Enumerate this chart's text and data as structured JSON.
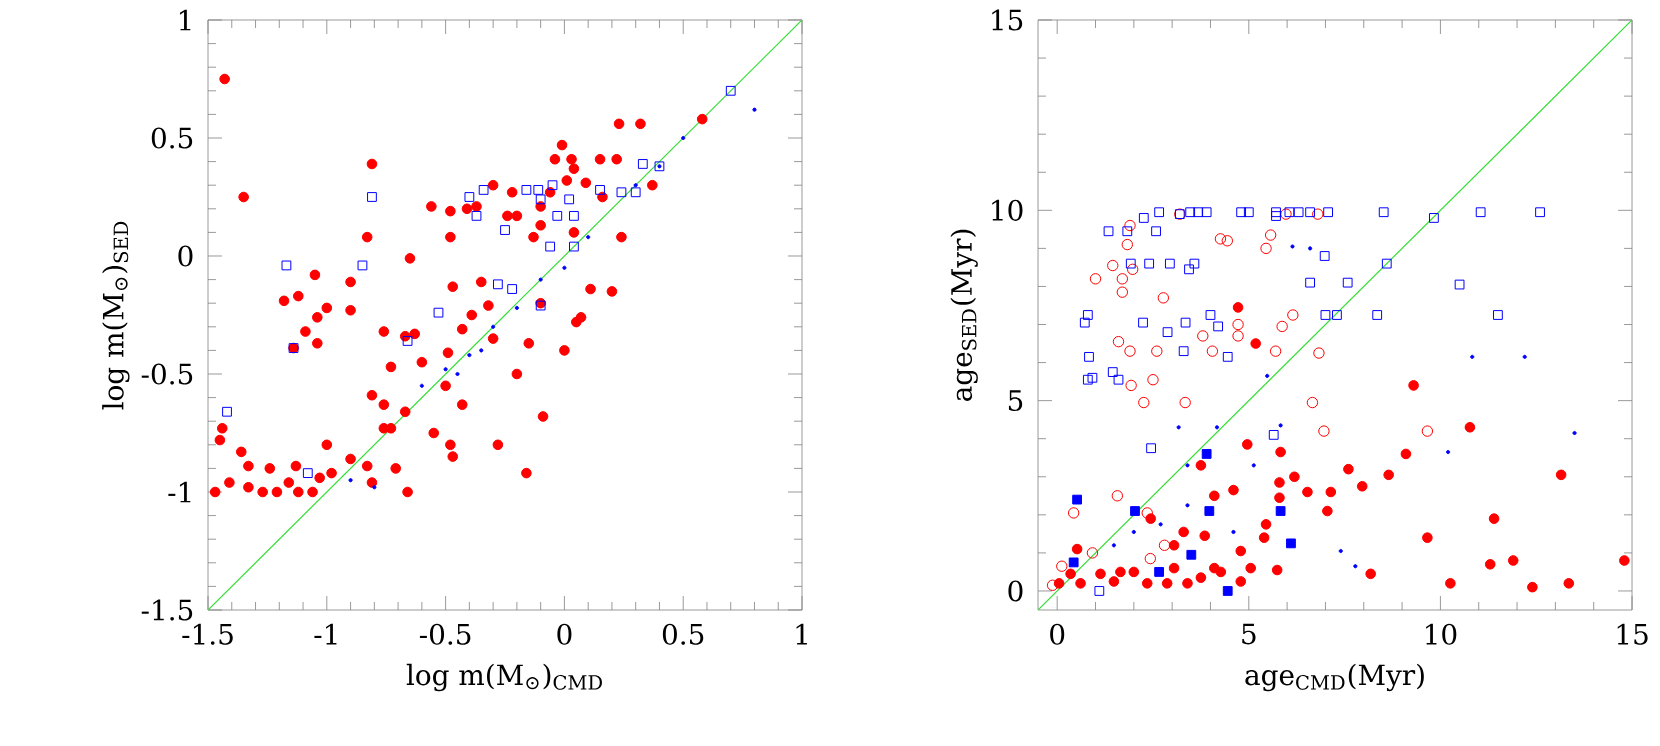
{
  "chart_data": [
    {
      "type": "scatter",
      "xlabel": "log m(M$_{⊙}$)$_{CMD}$",
      "ylabel": "log m(M$_{⊙}$)$_{SED}$",
      "xlim": [
        -1.5,
        1
      ],
      "ylim": [
        -1.5,
        1
      ],
      "xticks": [
        -1.5,
        -1,
        -0.5,
        0,
        0.5,
        1
      ],
      "yticks": [
        -1.5,
        -1,
        -0.5,
        0,
        0.5,
        1
      ],
      "series": [
        {
          "color": "#ff0000",
          "marker": "circle",
          "x": [
            -1.43,
            -1.35,
            -0.81,
            -0.83,
            -0.65,
            -1.05,
            -0.9,
            -1.18,
            -1.12,
            -1.0,
            -0.9,
            -1.04,
            -1.09,
            -1.04,
            -1.14,
            -0.76,
            -0.67,
            -0.63,
            -0.56,
            -0.48,
            -0.48,
            -0.41,
            -0.37,
            -0.3,
            -0.22,
            -0.24,
            -0.2,
            -0.13,
            -0.1,
            -0.04,
            -0.01,
            0.03,
            0.04,
            0.01,
            -0.06,
            -0.1,
            0.04,
            0.09,
            0.15,
            0.22,
            0.23,
            0.32,
            0.16,
            -0.47,
            -0.35,
            -0.32,
            -0.39,
            -0.43,
            -0.49,
            -0.15,
            -0.73,
            -0.81,
            -0.76,
            -0.73,
            -0.76,
            -0.67,
            -0.55,
            -0.48,
            -0.47,
            -0.28,
            -0.16,
            -0.43,
            -1.45,
            -1.44,
            -1.47,
            -1.41,
            -1.36,
            -1.33,
            -1.24,
            -1.21,
            -1.12,
            -1.27,
            -1.16,
            -1.06,
            -1.13,
            -1.0,
            -0.98,
            -0.9,
            -0.83,
            -0.81,
            -0.66,
            -0.71,
            -1.33,
            -1.03,
            0.24,
            0.37,
            0.58,
            -0.09,
            0.07,
            0.11,
            -0.3,
            -0.2,
            0.0,
            0.2,
            -0.5,
            -0.6,
            -0.1,
            0.05
          ],
          "values": [
            0.75,
            0.25,
            0.39,
            0.08,
            -0.01,
            -0.08,
            -0.11,
            -0.19,
            -0.17,
            -0.22,
            -0.23,
            -0.26,
            -0.32,
            -0.37,
            -0.39,
            -0.32,
            -0.34,
            -0.33,
            0.21,
            0.19,
            0.08,
            0.2,
            0.21,
            0.3,
            0.27,
            0.17,
            0.17,
            0.08,
            0.13,
            0.41,
            0.47,
            0.41,
            0.37,
            0.32,
            0.27,
            0.21,
            0.1,
            0.31,
            0.41,
            0.41,
            0.56,
            0.56,
            0.25,
            -0.13,
            -0.11,
            -0.21,
            -0.25,
            -0.31,
            -0.41,
            -0.37,
            -0.47,
            -0.59,
            -0.63,
            -0.73,
            -0.73,
            -0.66,
            -0.75,
            -0.8,
            -0.85,
            -0.8,
            -0.92,
            -0.63,
            -0.78,
            -0.73,
            -1.0,
            -0.96,
            -0.83,
            -0.89,
            -0.9,
            -1.0,
            -1.0,
            -1.0,
            -0.96,
            -1.0,
            -0.89,
            -0.8,
            -0.92,
            -0.86,
            -0.89,
            -0.96,
            -1.0,
            -0.9,
            -0.98,
            -0.94,
            0.08,
            0.3,
            0.58,
            -0.68,
            -0.26,
            -0.14,
            -0.35,
            -0.5,
            -0.4,
            -0.15,
            -0.55,
            -0.45,
            -0.2,
            -0.28
          ]
        },
        {
          "color": "#0000ff",
          "marker": "square",
          "x": [
            -0.81,
            -1.17,
            -0.85,
            -1.14,
            -1.42,
            -1.08,
            -0.4,
            -0.34,
            -0.37,
            -0.25,
            -0.16,
            -0.11,
            -0.05,
            -0.1,
            0.02,
            0.04,
            -0.03,
            0.15,
            0.24,
            0.3,
            0.33,
            0.4,
            0.7,
            -0.53,
            -0.28,
            -0.66,
            -0.06,
            0.04,
            -0.22,
            -0.1
          ],
          "values": [
            0.25,
            -0.04,
            -0.04,
            -0.39,
            -0.66,
            -0.92,
            0.25,
            0.28,
            0.17,
            0.11,
            0.28,
            0.28,
            0.3,
            0.24,
            0.24,
            0.17,
            0.17,
            0.28,
            0.27,
            0.27,
            0.39,
            0.38,
            0.7,
            -0.24,
            -0.12,
            -0.36,
            0.04,
            0.04,
            -0.14,
            -0.21
          ]
        },
        {
          "color": "#0000ff",
          "marker": "circle",
          "x": [
            -0.9,
            -0.8,
            -0.6,
            -0.5,
            -0.4,
            -0.3,
            -0.2,
            -0.1,
            0.0,
            0.1,
            0.3,
            0.5,
            0.8,
            0.4,
            -0.45,
            -0.35
          ],
          "values": [
            -0.95,
            -0.98,
            -0.55,
            -0.48,
            -0.42,
            -0.3,
            -0.22,
            -0.1,
            -0.05,
            0.08,
            0.3,
            0.5,
            0.62,
            0.38,
            -0.5,
            -0.4
          ]
        },
        {
          "type": "line",
          "color": "#33dd33",
          "marker": "none",
          "x": [
            -1.5,
            1
          ],
          "values": [
            -1.5,
            1
          ]
        }
      ]
    },
    {
      "type": "scatter",
      "xlabel": "age$_{CMD}$(Myr)",
      "ylabel": "age$_{SED}$(Myr)",
      "xlim": [
        -0.5,
        15
      ],
      "ylim": [
        -0.5,
        15
      ],
      "xticks": [
        0,
        5,
        10,
        15
      ],
      "yticks": [
        0,
        5,
        10,
        15
      ],
      "series": [
        {
          "color": "#ff0000",
          "marker": "circle",
          "x": [
            1.0,
            1.45,
            1.7,
            1.7,
            1.83,
            1.9,
            1.97,
            2.77,
            1.6,
            1.9,
            2.6,
            2.5,
            2.26,
            3.34,
            1.93,
            3.2,
            3.8,
            4.05,
            4.26,
            4.44,
            4.72,
            4.72,
            5.45,
            5.57,
            5.87,
            6.15,
            5.97,
            6.8,
            6.83,
            5.7,
            6.66,
            6.96,
            9.66,
            0.43,
            1.57,
            0.12,
            0.92,
            -0.12,
            2.8,
            2.43,
            2.35
          ],
          "values": [
            8.2,
            8.55,
            8.2,
            7.85,
            9.1,
            9.6,
            8.45,
            7.7,
            6.55,
            6.3,
            6.3,
            5.55,
            4.95,
            4.95,
            5.4,
            9.9,
            6.7,
            6.3,
            9.25,
            9.2,
            6.7,
            7.0,
            9.0,
            9.35,
            6.95,
            7.25,
            9.9,
            9.9,
            6.25,
            6.3,
            4.95,
            4.2,
            4.2,
            2.05,
            2.5,
            0.65,
            1.0,
            0.15,
            1.2,
            0.85,
            2.05
          ]
        },
        {
          "color": "#0000ff",
          "marker": "square",
          "x": [
            1.34,
            1.83,
            2.26,
            2.58,
            2.66,
            3.2,
            3.47,
            3.68,
            3.9,
            4.8,
            5.0,
            5.71,
            5.71,
            6.06,
            6.3,
            6.6,
            7.07,
            8.52,
            9.83,
            11.05,
            12.6,
            1.92,
            2.4,
            2.94,
            3.44,
            3.58,
            6.6,
            7.58,
            10.5,
            8.6,
            0.72,
            0.8,
            0.83,
            0.92,
            0.8,
            1.45,
            1.6,
            2.24,
            2.88,
            3.35,
            3.3,
            4.0,
            4.2,
            4.45,
            7.0,
            7.3,
            8.35,
            11.5,
            2.45,
            5.65,
            1.1,
            6.98
          ],
          "values": [
            9.45,
            9.45,
            9.8,
            9.45,
            9.95,
            9.9,
            9.95,
            9.95,
            9.95,
            9.95,
            9.95,
            9.95,
            9.85,
            9.95,
            9.95,
            9.95,
            9.95,
            9.95,
            9.8,
            9.95,
            9.95,
            8.6,
            8.6,
            8.6,
            8.45,
            8.6,
            8.1,
            8.1,
            8.05,
            8.6,
            7.05,
            7.25,
            6.15,
            5.6,
            5.55,
            5.75,
            5.55,
            7.05,
            6.8,
            7.05,
            6.3,
            7.25,
            6.95,
            6.15,
            7.25,
            7.25,
            7.25,
            7.25,
            3.75,
            4.1,
            0.0,
            8.8
          ]
        },
        {
          "color": "#0000ff",
          "marker": "square",
          "x": [
            0.52,
            3.9,
            3.5,
            3.97,
            5.83,
            6.1,
            4.45,
            2.66,
            2.03,
            0.43
          ],
          "values": [
            2.4,
            3.6,
            0.95,
            2.1,
            2.1,
            1.25,
            0.0,
            0.5,
            2.1,
            0.75
          ]
        },
        {
          "color": "#0000ff",
          "marker": "circle",
          "x": [
            3.17,
            4.17,
            5.48,
            10.83,
            12.2,
            13.5,
            7.4,
            7.78,
            6.14,
            6.6,
            1.48,
            2.0,
            2.7,
            3.4,
            4.6,
            5.13,
            5.83,
            10.2,
            3.4
          ],
          "values": [
            4.3,
            4.3,
            5.65,
            6.15,
            6.15,
            4.15,
            1.05,
            0.65,
            9.05,
            9.0,
            1.2,
            1.55,
            1.75,
            2.25,
            1.55,
            3.3,
            4.35,
            3.65,
            3.3
          ]
        },
        {
          "color": "#ff0000",
          "marker": "circle",
          "x": [
            4.72,
            5.18,
            10.77,
            9.66,
            11.3,
            11.9,
            12.4,
            14.8,
            10.26,
            13.35,
            6.19,
            5.8,
            7.14,
            7.96,
            8.65,
            9.1,
            5.4,
            5.45,
            5.8,
            3.85,
            4.6,
            4.96,
            5.74,
            8.18,
            0.52,
            0.05,
            0.35,
            0.61,
            1.13,
            1.48,
            1.65,
            2.35,
            2.87,
            3.4,
            3.75,
            4.27,
            4.79,
            5.05,
            4.1,
            3.05,
            2.0,
            2.44,
            3.3,
            4.1,
            3.75,
            3.05,
            6.53,
            7.05,
            7.6,
            9.3,
            13.15,
            11.4,
            4.79,
            5.83
          ],
          "values": [
            7.45,
            6.5,
            4.3,
            1.4,
            0.7,
            0.8,
            0.1,
            0.8,
            0.2,
            0.2,
            3.0,
            2.85,
            2.6,
            2.75,
            3.05,
            3.6,
            1.4,
            1.75,
            2.45,
            1.45,
            2.65,
            3.85,
            0.55,
            0.45,
            1.1,
            0.2,
            0.45,
            0.2,
            0.45,
            0.25,
            0.5,
            0.2,
            0.2,
            0.2,
            0.35,
            0.5,
            0.25,
            0.6,
            0.6,
            0.6,
            0.5,
            1.9,
            1.55,
            2.5,
            3.3,
            1.2,
            2.6,
            2.1,
            3.2,
            5.4,
            3.05,
            1.9,
            1.05,
            3.65
          ]
        },
        {
          "type": "line",
          "color": "#33dd33",
          "marker": "none",
          "x": [
            -0.5,
            15
          ],
          "values": [
            -0.5,
            15
          ]
        }
      ]
    }
  ]
}
